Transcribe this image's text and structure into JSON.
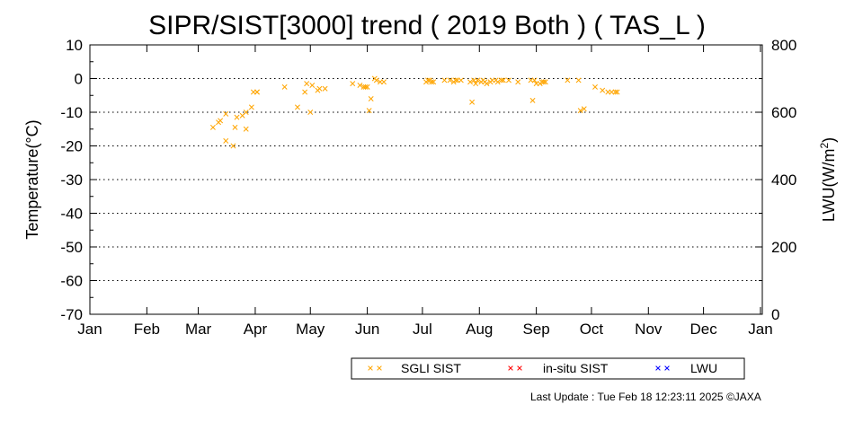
{
  "chart_data": {
    "type": "scatter",
    "title": "SIPR/SIST[3000] trend ( 2019 Both ) ( TAS_L )",
    "ylabel": "Temperature(°C)",
    "y2label_main": "LWU(W/m",
    "y2label_sup": "2",
    "y2label_end": ")",
    "xlim_days": [
      0,
      366
    ],
    "ylim": [
      -70,
      10
    ],
    "y2lim": [
      0,
      800
    ],
    "yticks": [
      "10",
      "0",
      "-10",
      "-20",
      "-30",
      "-40",
      "-50",
      "-60",
      "-70"
    ],
    "y2ticks": [
      "800",
      "600",
      "400",
      "200",
      "0"
    ],
    "xticks": [
      "Jan",
      "Feb",
      "Mar",
      "Apr",
      "May",
      "Jun",
      "Jul",
      "Aug",
      "Sep",
      "Oct",
      "Nov",
      "Dec",
      "Jan"
    ],
    "grid": "dotted horizontal",
    "legend_position": "bottom",
    "series": [
      {
        "name": "SGLI SIST",
        "color": "#FFA500",
        "marker": "x",
        "x": [
          67,
          70,
          71,
          74,
          74,
          78,
          79,
          80,
          83,
          85,
          85,
          88,
          89,
          91,
          91,
          106,
          113,
          117,
          118,
          120,
          121,
          124,
          125,
          128,
          143,
          147,
          149,
          150,
          151,
          152,
          153,
          155,
          156,
          158,
          160,
          183,
          184,
          185,
          186,
          187,
          193,
          196,
          198,
          199,
          200,
          202,
          207,
          208,
          209,
          210,
          211,
          213,
          214,
          215,
          216,
          218,
          219,
          221,
          222,
          224,
          225,
          228,
          233,
          240,
          241,
          242,
          243,
          245,
          246,
          247,
          248,
          260,
          266,
          267,
          269,
          275,
          279,
          282,
          284,
          286,
          287
        ],
        "y": [
          -14.5,
          -13,
          -12.5,
          -10.5,
          -18.5,
          -20,
          -14.5,
          -11.5,
          -11,
          -15,
          -10,
          -8.5,
          -4,
          -4,
          -4,
          -2.5,
          -8.5,
          -4,
          -1.5,
          -10,
          -2,
          -3.5,
          -3,
          -3,
          -1.5,
          -2,
          -2.5,
          -2.5,
          -2.5,
          -9.5,
          -6,
          0,
          -0.5,
          -1,
          -1,
          -1,
          -0.5,
          -0.5,
          -1,
          -1,
          -0.5,
          -0.5,
          -1,
          -0.5,
          -0.5,
          -0.5,
          -1,
          -7,
          -0.5,
          -1.5,
          -0.5,
          -1,
          -0.5,
          -1,
          -1.5,
          -1,
          -0.5,
          -0.5,
          -1,
          -0.5,
          -0.5,
          -0.5,
          -1,
          -0.5,
          -6.5,
          -0.5,
          -1.5,
          -1.5,
          -1,
          -1,
          -1,
          -0.5,
          -0.5,
          -9.5,
          -9,
          -2.5,
          -3.5,
          -4,
          -4,
          -4,
          -4
        ]
      },
      {
        "name": "in-situ SIST",
        "color": "#FF0000",
        "marker": "x",
        "x": [],
        "y": []
      },
      {
        "name": "LWU",
        "color": "#0000FF",
        "marker": "x",
        "x": [],
        "y": []
      }
    ]
  },
  "footer": {
    "last_update_label": "Last Update : Tue Feb 18 12:23:11 2025",
    "credit": "©JAXA"
  }
}
